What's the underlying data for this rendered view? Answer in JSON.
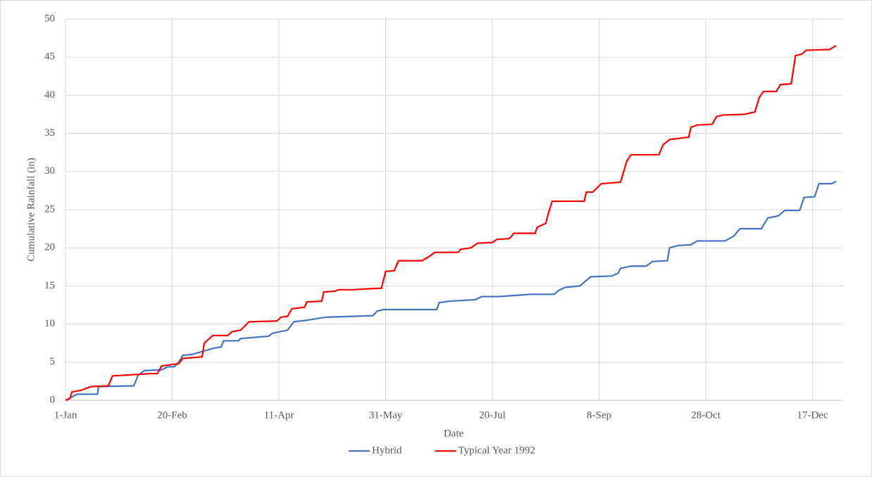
{
  "chart_data": {
    "type": "line",
    "x_label": "Date",
    "y_label": "Cumulative Rainfall (in)",
    "xlim": [
      0,
      364
    ],
    "xticks": [
      {
        "value": 0,
        "label": "1-Jan"
      },
      {
        "value": 50,
        "label": "20-Feb"
      },
      {
        "value": 100,
        "label": "11-Apr"
      },
      {
        "value": 150,
        "label": "31-May"
      },
      {
        "value": 200,
        "label": "20-Jul"
      },
      {
        "value": 250,
        "label": "8-Sep"
      },
      {
        "value": 300,
        "label": "28-Oct"
      },
      {
        "value": 350,
        "label": "17-Dec"
      }
    ],
    "ylim": [
      0,
      50
    ],
    "yticks": [
      0,
      5,
      10,
      15,
      20,
      25,
      30,
      35,
      40,
      45,
      50
    ],
    "grid": true,
    "legend": "bottom",
    "series": [
      {
        "name": "Hybrid",
        "color": "#4472c4",
        "x": [
          0,
          2,
          5.5,
          15,
          15.5,
          32,
          34,
          37,
          45,
          48,
          51,
          53,
          55,
          59,
          64,
          69,
          73,
          74,
          81,
          82,
          95,
          97,
          104,
          107,
          113,
          122,
          133,
          144,
          146,
          149,
          174,
          175,
          180,
          192,
          195,
          203,
          213,
          218,
          229,
          231,
          234,
          241,
          246,
          256,
          259,
          260,
          265,
          272,
          275,
          282,
          283,
          287,
          293,
          296,
          309,
          313,
          316,
          326,
          329,
          334,
          337,
          344,
          346,
          351,
          353,
          359,
          361
        ],
        "values": [
          0,
          0.3,
          0.8,
          0.8,
          1.8,
          1.9,
          3.3,
          3.9,
          4.0,
          4.4,
          4.4,
          5.0,
          5.9,
          6.0,
          6.4,
          6.8,
          7.0,
          7.8,
          7.8,
          8.1,
          8.4,
          8.8,
          9.2,
          10.3,
          10.5,
          10.9,
          11.0,
          11.1,
          11.7,
          11.9,
          11.9,
          12.8,
          13.0,
          13.2,
          13.6,
          13.6,
          13.8,
          13.9,
          13.9,
          14.4,
          14.8,
          15.0,
          16.2,
          16.3,
          16.7,
          17.3,
          17.6,
          17.6,
          18.2,
          18.3,
          20.0,
          20.3,
          20.4,
          20.9,
          20.9,
          21.5,
          22.5,
          22.5,
          23.9,
          24.2,
          24.9,
          24.9,
          26.6,
          26.7,
          28.4,
          28.4,
          28.7
        ]
      },
      {
        "name": "Typical Year 1992",
        "color": "#ff0000",
        "x": [
          0,
          2,
          3,
          7,
          12,
          20,
          22,
          40,
          43,
          45,
          50,
          53,
          55,
          64,
          65,
          69,
          76,
          78,
          82,
          86,
          99,
          101,
          104,
          106,
          112,
          113,
          120,
          121,
          126,
          128,
          135,
          140,
          148,
          150,
          154,
          156,
          167,
          170,
          173,
          184,
          185,
          190,
          193,
          200,
          202,
          208,
          210,
          220,
          221,
          225,
          226,
          228,
          243,
          244,
          247,
          251,
          260,
          263,
          265,
          278,
          280,
          283,
          292,
          293,
          296,
          303,
          305,
          308,
          318,
          323,
          325,
          327,
          333,
          335,
          340,
          342,
          345,
          347,
          358,
          361
        ],
        "values": [
          0,
          0.2,
          1.1,
          1.3,
          1.8,
          1.9,
          3.2,
          3.5,
          3.5,
          4.5,
          4.7,
          4.8,
          5.5,
          5.7,
          7.5,
          8.5,
          8.5,
          9.0,
          9.2,
          10.3,
          10.4,
          10.9,
          11.0,
          12.0,
          12.2,
          12.9,
          13.0,
          14.2,
          14.3,
          14.5,
          14.5,
          14.6,
          14.7,
          16.9,
          17.0,
          18.3,
          18.3,
          18.8,
          19.4,
          19.4,
          19.8,
          20.0,
          20.6,
          20.7,
          21.1,
          21.2,
          21.9,
          21.9,
          22.7,
          23.2,
          24.3,
          26.1,
          26.1,
          27.3,
          27.3,
          28.4,
          28.6,
          31.4,
          32.2,
          32.2,
          33.5,
          34.2,
          34.5,
          35.8,
          36.1,
          36.2,
          37.2,
          37.4,
          37.5,
          37.8,
          39.7,
          40.5,
          40.5,
          41.4,
          41.5,
          45.2,
          45.4,
          45.9,
          46.0,
          46.5
        ]
      }
    ]
  }
}
